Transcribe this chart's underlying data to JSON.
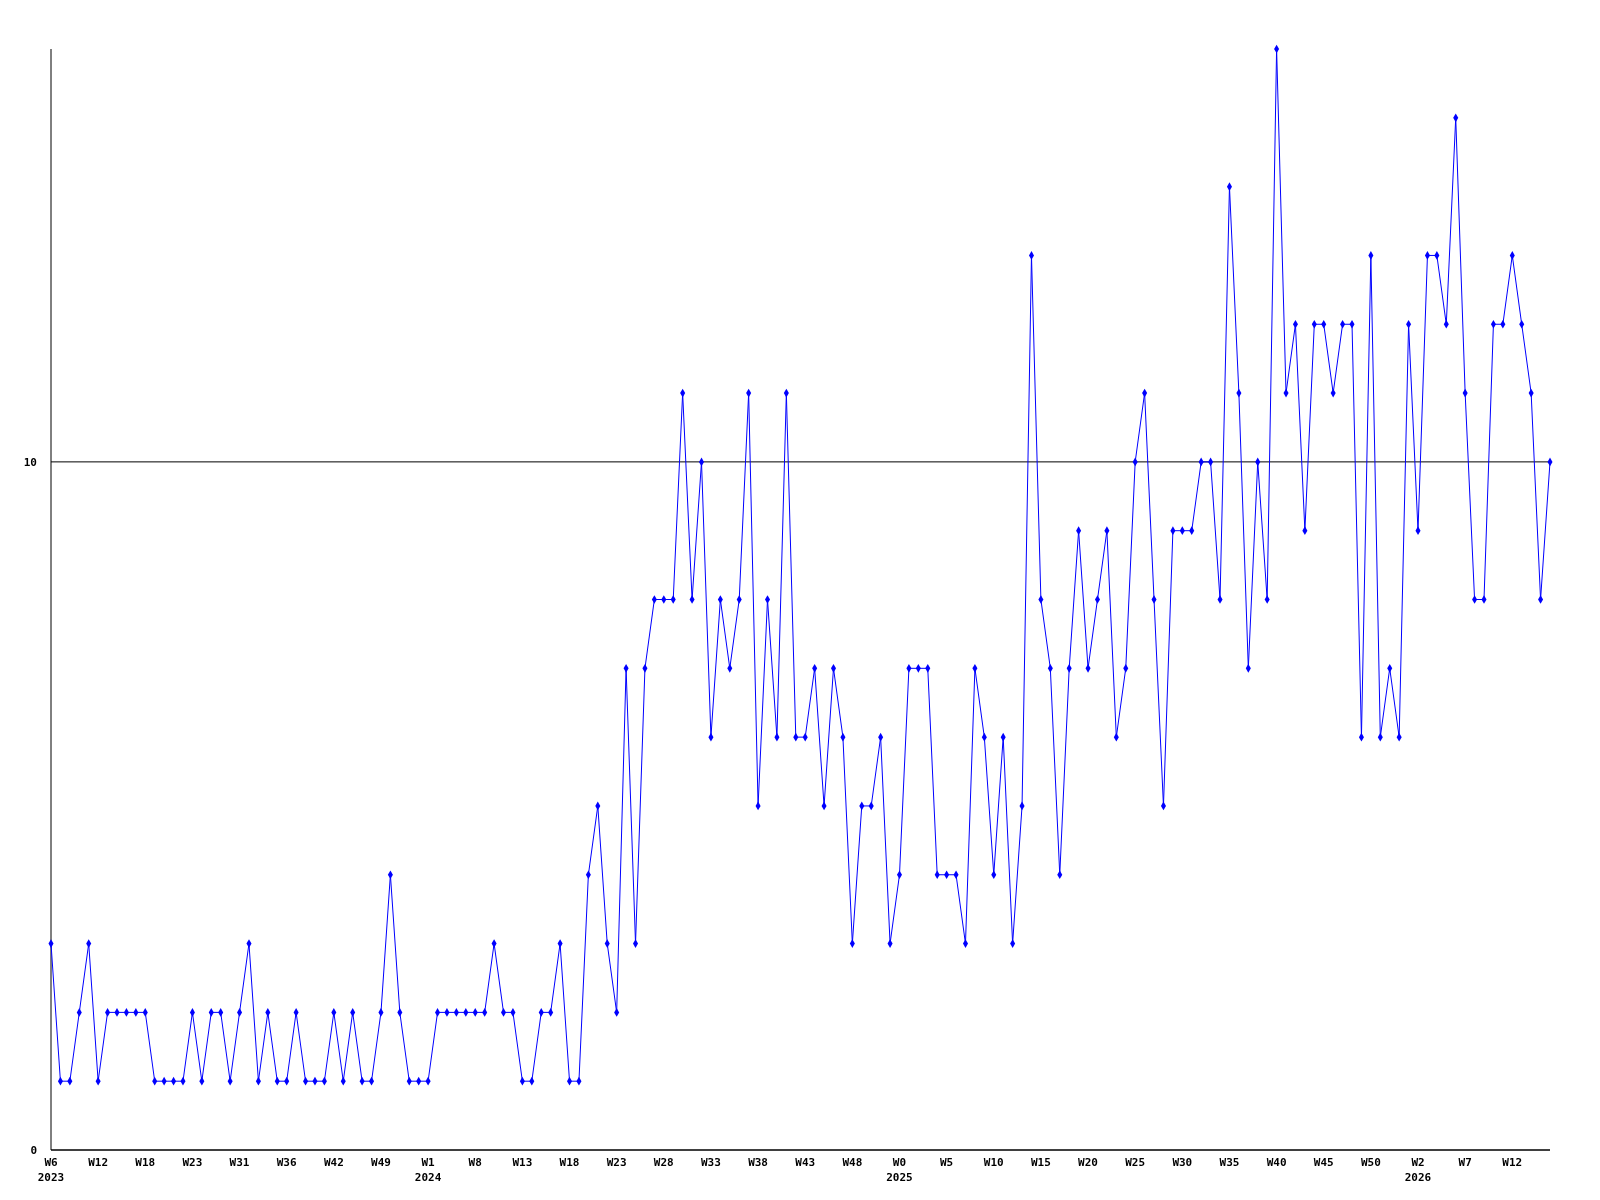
{
  "chart_data": {
    "type": "line",
    "categories": [
      "W6\n2023",
      null,
      null,
      null,
      null,
      "W12",
      null,
      null,
      null,
      null,
      "W18",
      null,
      null,
      null,
      null,
      "W23",
      null,
      null,
      null,
      null,
      "W31",
      null,
      null,
      null,
      null,
      "W36",
      null,
      null,
      null,
      null,
      "W42",
      null,
      null,
      null,
      null,
      "W49",
      null,
      null,
      null,
      null,
      "W1\n2024",
      null,
      null,
      null,
      null,
      "W8",
      null,
      null,
      null,
      null,
      "W13",
      null,
      null,
      null,
      null,
      "W18",
      null,
      null,
      null,
      null,
      "W23",
      null,
      null,
      null,
      null,
      "W28",
      null,
      null,
      null,
      null,
      "W33",
      null,
      null,
      null,
      null,
      "W38",
      null,
      null,
      null,
      null,
      "W43",
      null,
      null,
      null,
      null,
      "W48",
      null,
      null,
      null,
      null,
      "W0\n2025",
      null,
      null,
      null,
      null,
      "W5",
      null,
      null,
      null,
      null,
      "W10",
      null,
      null,
      null,
      null,
      "W15",
      null,
      null,
      null,
      null,
      "W20",
      null,
      null,
      null,
      null,
      "W25",
      null,
      null,
      null,
      null,
      "W30",
      null,
      null,
      null,
      null,
      "W35",
      null,
      null,
      null,
      null,
      "W40",
      null,
      null,
      null,
      null,
      "W45",
      null,
      null,
      null,
      null,
      "W50",
      null,
      null,
      null,
      null,
      "W2\n2026",
      null,
      null,
      null,
      null,
      "W7",
      null,
      null,
      null,
      null,
      "W12",
      null,
      null,
      null,
      null
    ],
    "series": [
      {
        "color": "#0000ff",
        "values": [
          3,
          1,
          1,
          2,
          3,
          1,
          2,
          2,
          2,
          2,
          2,
          1,
          1,
          1,
          1,
          2,
          1,
          2,
          2,
          1,
          2,
          3,
          1,
          2,
          1,
          1,
          2,
          1,
          1,
          1,
          2,
          1,
          2,
          1,
          1,
          2,
          4,
          2,
          1,
          1,
          1,
          2,
          2,
          2,
          2,
          2,
          2,
          3,
          2,
          2,
          1,
          1,
          2,
          2,
          3,
          1,
          1,
          4,
          5,
          3,
          2,
          7,
          3,
          7,
          8,
          8,
          8,
          11,
          8,
          10,
          6,
          8,
          7,
          8,
          11,
          5,
          8,
          6,
          11,
          6,
          6,
          7,
          5,
          7,
          6,
          3,
          5,
          5,
          6,
          3,
          4,
          7,
          7,
          7,
          4,
          4,
          4,
          3,
          7,
          6,
          4,
          6,
          3,
          5,
          13,
          8,
          7,
          4,
          7,
          9,
          7,
          8,
          9,
          6,
          7,
          10,
          11,
          8,
          5,
          9,
          9,
          9,
          10,
          10,
          8,
          14,
          11,
          7,
          10,
          8,
          16,
          11,
          12,
          9,
          12,
          12,
          11,
          12,
          12,
          6,
          13,
          6,
          7,
          6,
          12,
          9,
          13,
          13,
          12,
          15,
          11,
          8,
          8,
          12,
          12,
          13,
          12,
          11,
          8,
          10
        ]
      }
    ],
    "ylim": [
      0,
      16
    ],
    "yticks": [
      0,
      10
    ],
    "grid": "y",
    "marker": "diamond",
    "line_style": "solid"
  }
}
